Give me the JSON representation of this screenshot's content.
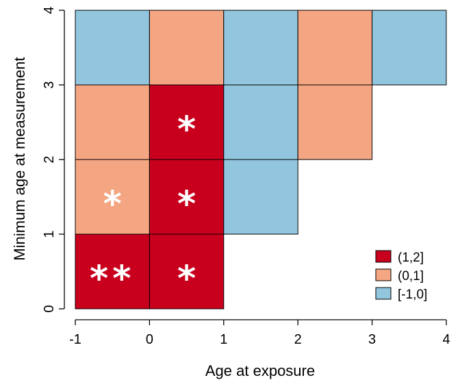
{
  "chart_data": {
    "type": "heatmap",
    "title": "",
    "xlabel": "Age at exposure",
    "ylabel": "Minimum age at measurement",
    "xlim": [
      -1,
      4
    ],
    "ylim": [
      0,
      4
    ],
    "x_ticks": [
      "-1",
      "0",
      "1",
      "2",
      "3",
      "4"
    ],
    "y_ticks": [
      "0",
      "1",
      "2",
      "3",
      "4"
    ],
    "categories": [
      {
        "label": "(1,2]",
        "color": "#C8001E"
      },
      {
        "label": "(0,1]",
        "color": "#F4A582"
      },
      {
        "label": "[-1,0]",
        "color": "#92C5DE"
      }
    ],
    "legend_position": "bottom-right",
    "cells": [
      {
        "x": [
          -1,
          0
        ],
        "y": [
          0,
          1
        ],
        "category": "(1,2]",
        "stars": "**"
      },
      {
        "x": [
          0,
          1
        ],
        "y": [
          0,
          1
        ],
        "category": "(1,2]",
        "stars": "*"
      },
      {
        "x": [
          -1,
          0
        ],
        "y": [
          1,
          2
        ],
        "category": "(0,1]",
        "stars": "*"
      },
      {
        "x": [
          0,
          1
        ],
        "y": [
          1,
          2
        ],
        "category": "(1,2]",
        "stars": "*"
      },
      {
        "x": [
          1,
          2
        ],
        "y": [
          1,
          2
        ],
        "category": "[-1,0]",
        "stars": ""
      },
      {
        "x": [
          -1,
          0
        ],
        "y": [
          2,
          3
        ],
        "category": "(0,1]",
        "stars": ""
      },
      {
        "x": [
          0,
          1
        ],
        "y": [
          2,
          3
        ],
        "category": "(1,2]",
        "stars": "*"
      },
      {
        "x": [
          1,
          2
        ],
        "y": [
          2,
          3
        ],
        "category": "[-1,0]",
        "stars": ""
      },
      {
        "x": [
          2,
          3
        ],
        "y": [
          2,
          3
        ],
        "category": "(0,1]",
        "stars": ""
      },
      {
        "x": [
          -1,
          0
        ],
        "y": [
          3,
          4
        ],
        "category": "[-1,0]",
        "stars": ""
      },
      {
        "x": [
          0,
          1
        ],
        "y": [
          3,
          4
        ],
        "category": "(0,1]",
        "stars": ""
      },
      {
        "x": [
          1,
          2
        ],
        "y": [
          3,
          4
        ],
        "category": "[-1,0]",
        "stars": ""
      },
      {
        "x": [
          2,
          3
        ],
        "y": [
          3,
          4
        ],
        "category": "(0,1]",
        "stars": ""
      },
      {
        "x": [
          3,
          4
        ],
        "y": [
          3,
          4
        ],
        "category": "[-1,0]",
        "stars": ""
      }
    ]
  }
}
